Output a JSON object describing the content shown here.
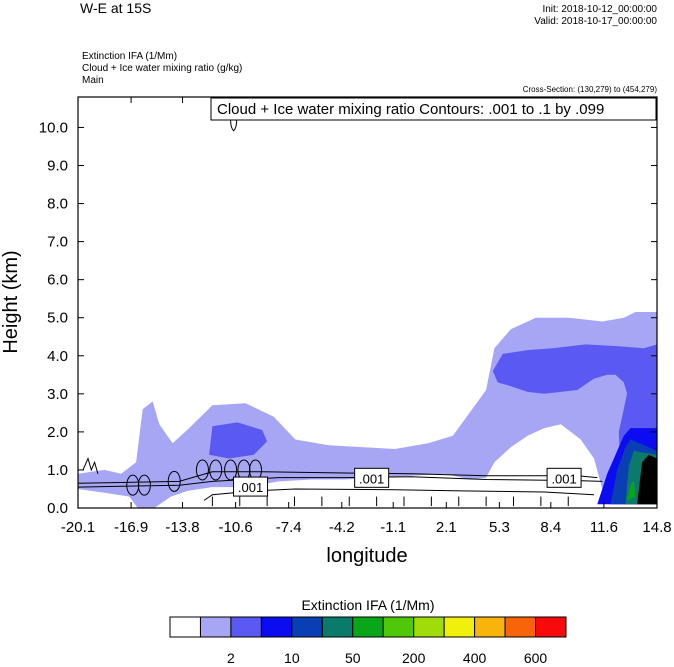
{
  "chart_data": {
    "type": "heatmap",
    "title": "W-E at 15S",
    "init_text": "Init: 2018-10-12_00:00:00",
    "valid_text": "Valid: 2018-10-17_00:00:00",
    "field_lines": [
      "Extinction IFA   (1/Mm)",
      "Cloud + Ice water mixing ratio   (g/kg)",
      "Main"
    ],
    "cross_section_text": "Cross-Section: (130,279) to (454,279)",
    "contour_note": "Cloud + Ice water mixing ratio Contours: .001 to .1 by .099",
    "xlabel": "longitude",
    "ylabel": "Height (km)",
    "xlim": [
      -20.1,
      14.8
    ],
    "ylim": [
      0,
      10.8
    ],
    "x_ticks": [
      "-20.1",
      "-16.9",
      "-13.8",
      "-10.6",
      "-7.4",
      "-4.2",
      "-1.1",
      "2.1",
      "5.3",
      "8.4",
      "11.6",
      "14.8"
    ],
    "x_tick_values": [
      -20.1,
      -16.9,
      -13.8,
      -10.6,
      -7.4,
      -4.2,
      -1.1,
      2.1,
      5.3,
      8.4,
      11.6,
      14.8
    ],
    "y_ticks": [
      "0.0",
      "1.0",
      "2.0",
      "3.0",
      "4.0",
      "5.0",
      "6.0",
      "7.0",
      "8.0",
      "9.0",
      "10.0"
    ],
    "y_tick_values": [
      0,
      1,
      2,
      3,
      4,
      5,
      6,
      7,
      8,
      9,
      10
    ],
    "contour_labels": [
      {
        "text": ".001",
        "x": -9.7,
        "y": 0.55
      },
      {
        "text": ".001",
        "x": -2.4,
        "y": 0.78
      },
      {
        "text": ".001",
        "x": 9.2,
        "y": 0.78
      }
    ],
    "colorbar": {
      "title": "Extinction IFA  (1/Mm)",
      "colors": [
        "#ffffff",
        "#a6a6f4",
        "#5a5af2",
        "#0c0cf0",
        "#0a3fb3",
        "#0a7a6b",
        "#0aa61a",
        "#50c80a",
        "#a0dc0a",
        "#f0f00a",
        "#f8b40a",
        "#f8640a",
        "#f80a0a"
      ],
      "labels": [
        {
          "text": "2",
          "index": 1
        },
        {
          "text": "10",
          "index": 3
        },
        {
          "text": "50",
          "index": 5
        },
        {
          "text": "200",
          "index": 7
        },
        {
          "text": "400",
          "index": 9
        },
        {
          "text": "600",
          "index": 11
        }
      ]
    },
    "regions": [
      {
        "level": 1,
        "color": "#a6a6f4",
        "points": [
          [
            -20.1,
            0.9
          ],
          [
            -18.5,
            1.0
          ],
          [
            -17.5,
            0.9
          ],
          [
            -16.6,
            1.2
          ],
          [
            -16.2,
            2.6
          ],
          [
            -15.6,
            2.8
          ],
          [
            -15.2,
            2.2
          ],
          [
            -14.4,
            1.7
          ],
          [
            -13.4,
            2.1
          ],
          [
            -12.0,
            2.7
          ],
          [
            -10.0,
            2.75
          ],
          [
            -8.3,
            2.4
          ],
          [
            -7.0,
            1.8
          ],
          [
            -5.0,
            1.65
          ],
          [
            -3.0,
            1.6
          ],
          [
            -1.0,
            1.55
          ],
          [
            1.0,
            1.7
          ],
          [
            2.5,
            1.9
          ],
          [
            3.5,
            2.5
          ],
          [
            4.5,
            3.1
          ],
          [
            5.0,
            4.2
          ],
          [
            6.0,
            4.7
          ],
          [
            7.5,
            5.0
          ],
          [
            9.5,
            5.0
          ],
          [
            11.5,
            4.9
          ],
          [
            12.8,
            5.0
          ],
          [
            13.5,
            5.15
          ],
          [
            14.8,
            5.15
          ],
          [
            14.8,
            0.1
          ],
          [
            12.0,
            0.1
          ],
          [
            11.5,
            0.5
          ],
          [
            11.0,
            1.3
          ],
          [
            10.2,
            1.8
          ],
          [
            9.0,
            2.2
          ],
          [
            8.0,
            2.1
          ],
          [
            7.0,
            1.9
          ],
          [
            6.0,
            1.6
          ],
          [
            5.0,
            1.2
          ],
          [
            4.5,
            0.8
          ],
          [
            3.5,
            0.75
          ],
          [
            2.0,
            0.9
          ],
          [
            0.0,
            0.85
          ],
          [
            -2.0,
            0.8
          ],
          [
            -4.0,
            0.75
          ],
          [
            -6.0,
            0.75
          ],
          [
            -8.0,
            0.7
          ],
          [
            -10.0,
            0.55
          ],
          [
            -12.0,
            0.55
          ],
          [
            -13.5,
            0.45
          ],
          [
            -14.5,
            0.3
          ],
          [
            -15.5,
            0.0
          ],
          [
            -16.5,
            0.0
          ],
          [
            -17.0,
            0.3
          ],
          [
            -18.5,
            0.4
          ],
          [
            -20.1,
            0.5
          ]
        ]
      },
      {
        "level": 2,
        "color": "#5a5af2",
        "points": [
          [
            -12.2,
            1.4
          ],
          [
            -12.0,
            2.15
          ],
          [
            -10.5,
            2.25
          ],
          [
            -9.0,
            2.05
          ],
          [
            -8.7,
            1.75
          ],
          [
            -9.5,
            1.4
          ],
          [
            -11.0,
            1.3
          ]
        ]
      },
      {
        "level": 2,
        "color": "#5a5af2",
        "points": [
          [
            4.9,
            3.6
          ],
          [
            5.5,
            4.05
          ],
          [
            7.0,
            4.15
          ],
          [
            8.5,
            4.2
          ],
          [
            10.5,
            4.3
          ],
          [
            12.5,
            4.25
          ],
          [
            14.0,
            4.2
          ],
          [
            14.8,
            4.3
          ],
          [
            14.8,
            0.1
          ],
          [
            13.0,
            0.1
          ],
          [
            12.6,
            0.7
          ],
          [
            12.5,
            2.0
          ],
          [
            13.0,
            3.0
          ],
          [
            12.8,
            3.3
          ],
          [
            12.3,
            3.5
          ],
          [
            11.8,
            3.5
          ],
          [
            11.0,
            3.4
          ],
          [
            10.0,
            3.1
          ],
          [
            9.0,
            3.05
          ],
          [
            8.0,
            3.0
          ],
          [
            7.0,
            3.05
          ],
          [
            6.0,
            3.2
          ],
          [
            5.2,
            3.3
          ]
        ]
      },
      {
        "level": 3,
        "color": "#0c0cf0",
        "points": [
          [
            11.2,
            0.1
          ],
          [
            11.8,
            0.9
          ],
          [
            12.3,
            1.4
          ],
          [
            12.8,
            1.9
          ],
          [
            13.2,
            2.1
          ],
          [
            14.8,
            2.1
          ],
          [
            14.8,
            0.1
          ]
        ]
      },
      {
        "level": 4,
        "color": "#0a3fb3",
        "points": [
          [
            12.0,
            0.1
          ],
          [
            12.4,
            1.0
          ],
          [
            12.9,
            1.6
          ],
          [
            13.2,
            1.8
          ],
          [
            14.8,
            1.5
          ],
          [
            14.8,
            0.1
          ]
        ]
      },
      {
        "level": 5,
        "color": "#0a7a6b",
        "points": [
          [
            12.9,
            0.1
          ],
          [
            13.1,
            1.1
          ],
          [
            13.4,
            1.5
          ],
          [
            14.8,
            1.4
          ],
          [
            14.8,
            0.1
          ]
        ]
      },
      {
        "level": 6,
        "color": "#0aa61a",
        "points": [
          [
            13.0,
            0.2
          ],
          [
            13.2,
            0.6
          ],
          [
            13.4,
            0.7
          ],
          [
            13.5,
            0.3
          ]
        ]
      },
      {
        "level": 9,
        "color": "#000000",
        "points": [
          [
            13.6,
            0.1
          ],
          [
            13.9,
            1.2
          ],
          [
            14.3,
            1.4
          ],
          [
            14.8,
            1.3
          ],
          [
            14.8,
            0.1
          ]
        ]
      }
    ]
  }
}
